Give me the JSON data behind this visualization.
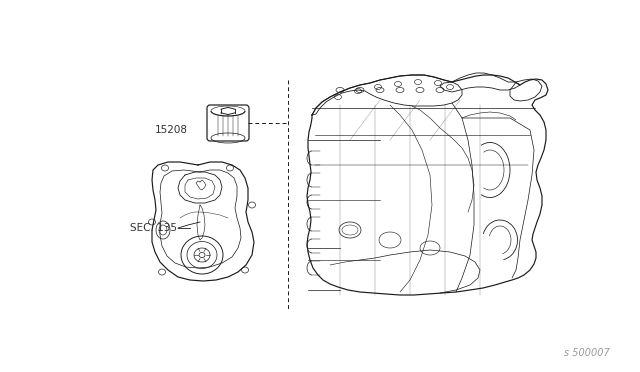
{
  "background_color": "#ffffff",
  "line_color": "#1a1a1a",
  "label_color": "#333333",
  "watermark_color": "#999999",
  "label_15208": "15208",
  "label_sec135": "SEC. 135",
  "watermark": "s 500007",
  "fig_width": 6.4,
  "fig_height": 3.72,
  "dpi": 100
}
